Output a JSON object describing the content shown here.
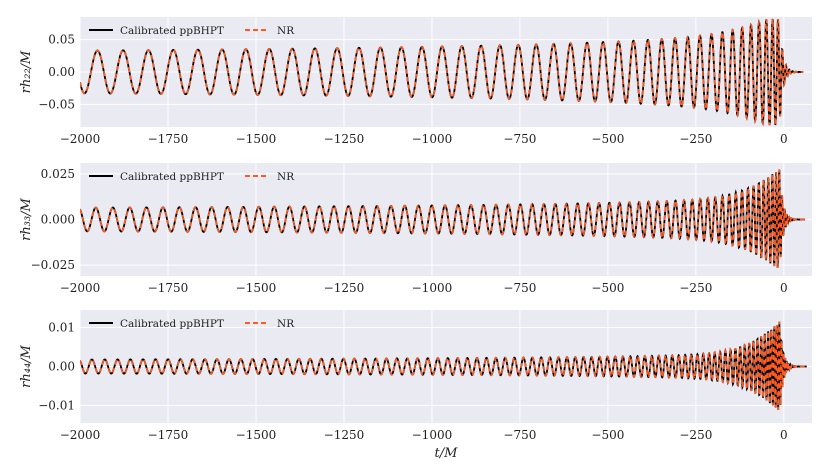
{
  "chart_data": [
    {
      "type": "line",
      "panel": "top",
      "ylabel": "rh_{22}/M",
      "ylabel_display": "rh₂₂/M",
      "xlim": [
        -2000,
        80
      ],
      "ylim": [
        -0.085,
        0.085
      ],
      "xticks": [
        -2000,
        -1750,
        -1500,
        -1250,
        -1000,
        -750,
        -500,
        -250,
        0
      ],
      "xtick_labels": [
        "−2000",
        "−1750",
        "−1500",
        "−1250",
        "−1000",
        "−750",
        "−500",
        "−250",
        "0"
      ],
      "yticks": [
        -0.05,
        0.0,
        0.05
      ],
      "ytick_labels": [
        "−0.05",
        "0.00",
        "0.05"
      ],
      "grid": true,
      "legend": {
        "placement": "top-left",
        "entries": [
          "Calibrated ppBHPT",
          "NR"
        ]
      },
      "series": [
        {
          "name": "Calibrated ppBHPT",
          "color": "#000000",
          "style": "solid"
        },
        {
          "name": "NR",
          "color": "#ff5a1f",
          "style": "dashed"
        }
      ],
      "waveform": {
        "peak_amplitude": 0.082,
        "early_amplitude": 0.033,
        "cycles": 41,
        "ringdown_end": 55
      }
    },
    {
      "type": "line",
      "panel": "middle",
      "ylabel": "rh_{33}/M",
      "ylabel_display": "rh₃₃/M",
      "xlim": [
        -2000,
        80
      ],
      "ylim": [
        -0.031,
        0.031
      ],
      "xticks": [
        -2000,
        -1750,
        -1500,
        -1250,
        -1000,
        -750,
        -500,
        -250,
        0
      ],
      "xtick_labels": [
        "−2000",
        "−1750",
        "−1500",
        "−1250",
        "−1000",
        "−750",
        "−500",
        "−250",
        "0"
      ],
      "yticks": [
        -0.025,
        0.0,
        0.025
      ],
      "ytick_labels": [
        "−0.025",
        "0.000",
        "0.025"
      ],
      "grid": true,
      "legend": {
        "placement": "top-left",
        "entries": [
          "Calibrated ppBHPT",
          "NR"
        ]
      },
      "series": [
        {
          "name": "Calibrated ppBHPT",
          "color": "#000000",
          "style": "solid"
        },
        {
          "name": "NR",
          "color": "#ff5a1f",
          "style": "dashed"
        }
      ],
      "waveform": {
        "peak_amplitude": 0.029,
        "early_amplitude": 0.0065,
        "cycles": 62,
        "ringdown_end": 60
      }
    },
    {
      "type": "line",
      "panel": "bottom",
      "ylabel": "rh_{44}/M",
      "ylabel_display": "rh₄₄/M",
      "xlim": [
        -2000,
        80
      ],
      "ylim": [
        -0.0145,
        0.0145
      ],
      "xticks": [
        -2000,
        -1750,
        -1500,
        -1250,
        -1000,
        -750,
        -500,
        -250,
        0
      ],
      "xtick_labels": [
        "−2000",
        "−1750",
        "−1500",
        "−1250",
        "−1000",
        "−750",
        "−500",
        "−250",
        "0"
      ],
      "yticks": [
        -0.01,
        0.0,
        0.01
      ],
      "ytick_labels": [
        "−0.01",
        "0.00",
        "0.01"
      ],
      "xlabel": "t/M",
      "grid": true,
      "legend": {
        "placement": "top-left",
        "entries": [
          "Calibrated ppBHPT",
          "NR"
        ]
      },
      "series": [
        {
          "name": "Calibrated ppBHPT",
          "color": "#000000",
          "style": "solid"
        },
        {
          "name": "NR",
          "color": "#ff5a1f",
          "style": "dashed"
        }
      ],
      "waveform": {
        "peak_amplitude": 0.0128,
        "early_amplitude": 0.0018,
        "cycles": 82,
        "ringdown_end": 65
      }
    }
  ]
}
